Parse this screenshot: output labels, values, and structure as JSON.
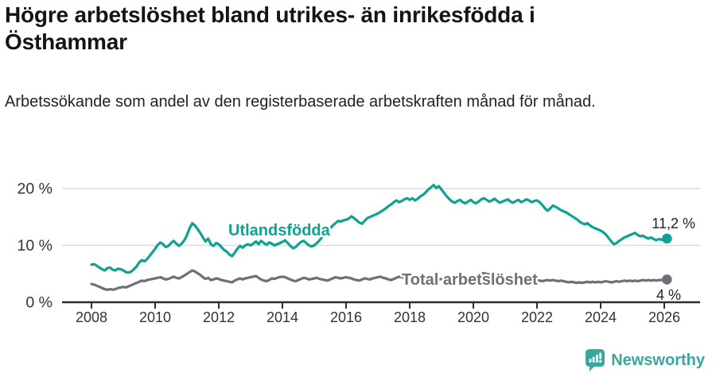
{
  "header": {
    "title": "Högre arbetslöshet bland utrikes- än inrikesfödda i Östhammar",
    "subtitle": "Arbetssökande som andel av den registerbaserade arbetskraften månad för månad."
  },
  "footer": {
    "brand": "Newsworthy"
  },
  "colors": {
    "teal": "#0fa294",
    "gray": "#6f6f77",
    "axis": "#2e2e2e",
    "gridline": "#dcdcdc",
    "tick_text": "#333333",
    "annotation_text": "#222222",
    "brand_teal": "#3ba69b"
  },
  "chart_data": {
    "type": "line",
    "title": "Högre arbetslöshet bland utrikes- än inrikesfödda i Östhammar",
    "subtitle": "Arbetssökande som andel av den registerbaserade arbetskraften månad för månad.",
    "x_unit": "month",
    "x_start_year": 2008,
    "x_end": "2026-02",
    "ylim": [
      0,
      22
    ],
    "grid": "horizontal",
    "y_ticks": [
      {
        "value": 0,
        "label": "0 %"
      },
      {
        "value": 10,
        "label": "10 %"
      },
      {
        "value": 20,
        "label": "20 %"
      }
    ],
    "x_ticks": [
      {
        "value": 2008,
        "label": "2008"
      },
      {
        "value": 2010,
        "label": "2010"
      },
      {
        "value": 2012,
        "label": "2012"
      },
      {
        "value": 2014,
        "label": "2014"
      },
      {
        "value": 2016,
        "label": "2016"
      },
      {
        "value": 2018,
        "label": "2018"
      },
      {
        "value": 2020,
        "label": "2020"
      },
      {
        "value": 2022,
        "label": "2022"
      },
      {
        "value": 2024,
        "label": "2024"
      },
      {
        "value": 2026,
        "label": "2026"
      }
    ],
    "series": [
      {
        "name": "Utlandsfödda",
        "color": "#0fa294",
        "end_value": 11.2,
        "end_label": "11,2 %",
        "values": [
          6.6,
          6.7,
          6.4,
          6.1,
          5.8,
          5.6,
          6.0,
          6.1,
          5.7,
          5.6,
          5.9,
          5.8,
          5.6,
          5.3,
          5.2,
          5.4,
          5.8,
          6.3,
          7.0,
          7.4,
          7.2,
          7.6,
          8.2,
          8.8,
          9.4,
          10.1,
          10.5,
          10.2,
          9.7,
          9.9,
          10.4,
          10.8,
          10.3,
          9.9,
          10.3,
          10.9,
          11.8,
          13.0,
          13.9,
          13.5,
          12.9,
          12.2,
          11.4,
          10.7,
          11.2,
          10.2,
          9.9,
          10.4,
          10.2,
          9.7,
          9.2,
          8.9,
          8.4,
          8.1,
          8.7,
          9.4,
          9.9,
          9.6,
          10.0,
          10.2,
          10.0,
          10.3,
          10.7,
          10.2,
          10.8,
          10.4,
          10.1,
          10.5,
          10.3,
          10.0,
          10.2,
          10.4,
          10.6,
          10.9,
          10.4,
          9.9,
          9.5,
          9.7,
          10.2,
          10.6,
          10.8,
          10.4,
          10.0,
          9.8,
          10.0,
          10.4,
          10.9,
          11.5,
          12.0,
          12.5,
          13.0,
          13.5,
          13.9,
          14.3,
          14.2,
          14.4,
          14.5,
          14.7,
          15.1,
          14.8,
          14.4,
          14.0,
          13.8,
          14.3,
          14.8,
          15.0,
          15.2,
          15.4,
          15.6,
          15.9,
          16.2,
          16.5,
          16.9,
          17.2,
          17.6,
          17.9,
          17.6,
          17.8,
          18.1,
          18.3,
          18.0,
          18.3,
          17.9,
          18.2,
          18.6,
          18.9,
          19.3,
          19.8,
          20.2,
          20.6,
          20.1,
          20.4,
          19.8,
          19.2,
          18.6,
          18.1,
          17.7,
          17.5,
          17.8,
          18.0,
          17.6,
          17.4,
          17.7,
          18.0,
          17.6,
          17.4,
          17.7,
          18.1,
          18.3,
          18.0,
          17.7,
          17.9,
          18.2,
          17.8,
          17.5,
          17.7,
          17.9,
          18.1,
          17.7,
          17.5,
          17.8,
          18.0,
          17.6,
          17.8,
          18.1,
          17.9,
          17.6,
          17.8,
          17.9,
          17.6,
          17.1,
          16.5,
          16.1,
          16.5,
          17.0,
          16.8,
          16.5,
          16.2,
          16.0,
          15.8,
          15.5,
          15.2,
          14.9,
          14.6,
          14.2,
          13.9,
          13.7,
          13.9,
          13.5,
          13.2,
          13.0,
          12.8,
          12.6,
          12.3,
          11.9,
          11.3,
          10.7,
          10.2,
          10.4,
          10.8,
          11.1,
          11.4,
          11.6,
          11.8,
          12.0,
          12.2,
          11.8,
          11.6,
          11.7,
          11.4,
          11.2,
          11.4,
          11.1,
          10.9,
          11.1,
          11.0,
          11.1,
          11.2
        ]
      },
      {
        "name": "Total arbetslöshet",
        "color": "#6f6f77",
        "end_value": 4.0,
        "end_label": "4 %",
        "values": [
          3.2,
          3.1,
          2.9,
          2.7,
          2.5,
          2.3,
          2.2,
          2.3,
          2.2,
          2.3,
          2.5,
          2.6,
          2.7,
          2.6,
          2.8,
          3.0,
          3.2,
          3.4,
          3.6,
          3.8,
          3.7,
          3.9,
          4.0,
          4.1,
          4.2,
          4.3,
          4.4,
          4.2,
          4.0,
          4.1,
          4.3,
          4.5,
          4.3,
          4.2,
          4.4,
          4.7,
          5.0,
          5.3,
          5.6,
          5.4,
          5.1,
          4.8,
          4.4,
          4.1,
          4.3,
          3.9,
          4.0,
          4.2,
          4.1,
          3.9,
          3.8,
          3.7,
          3.6,
          3.5,
          3.8,
          4.0,
          4.2,
          4.0,
          4.2,
          4.3,
          4.4,
          4.5,
          4.6,
          4.3,
          4.0,
          3.8,
          3.7,
          3.9,
          4.2,
          4.1,
          4.3,
          4.4,
          4.5,
          4.4,
          4.2,
          4.0,
          3.8,
          3.7,
          3.9,
          4.1,
          4.3,
          4.2,
          4.0,
          4.1,
          4.2,
          4.3,
          4.1,
          4.0,
          3.9,
          3.8,
          4.0,
          4.2,
          4.4,
          4.3,
          4.2,
          4.3,
          4.4,
          4.3,
          4.2,
          4.0,
          3.9,
          3.8,
          4.0,
          4.2,
          4.1,
          4.0,
          4.2,
          4.3,
          4.4,
          4.5,
          4.3,
          4.2,
          4.0,
          3.9,
          4.1,
          4.3,
          4.5,
          4.4,
          4.3,
          4.2,
          4.1,
          4.0,
          3.9,
          3.8,
          3.7,
          3.6,
          3.8,
          4.0,
          3.9,
          3.8,
          3.9,
          4.0,
          4.1,
          4.0,
          3.9,
          3.8,
          3.9,
          4.0,
          4.2,
          4.3,
          4.2,
          4.1,
          4.2,
          4.3,
          4.4,
          4.6,
          4.8,
          5.0,
          5.1,
          5.0,
          4.9,
          4.8,
          4.7,
          4.6,
          4.5,
          4.4,
          4.3,
          4.2,
          4.1,
          4.0,
          3.9,
          3.8,
          3.9,
          4.0,
          3.9,
          3.8,
          3.9,
          3.8,
          3.9,
          3.8,
          3.7,
          3.8,
          3.9,
          3.8,
          3.9,
          3.8,
          3.7,
          3.8,
          3.7,
          3.6,
          3.5,
          3.6,
          3.5,
          3.4,
          3.5,
          3.4,
          3.5,
          3.6,
          3.5,
          3.6,
          3.5,
          3.6,
          3.5,
          3.6,
          3.7,
          3.6,
          3.5,
          3.6,
          3.7,
          3.6,
          3.7,
          3.8,
          3.7,
          3.8,
          3.7,
          3.8,
          3.7,
          3.8,
          3.9,
          3.8,
          3.9,
          3.8,
          3.9,
          3.8,
          3.9,
          3.9,
          3.9,
          4.0
        ]
      }
    ]
  }
}
